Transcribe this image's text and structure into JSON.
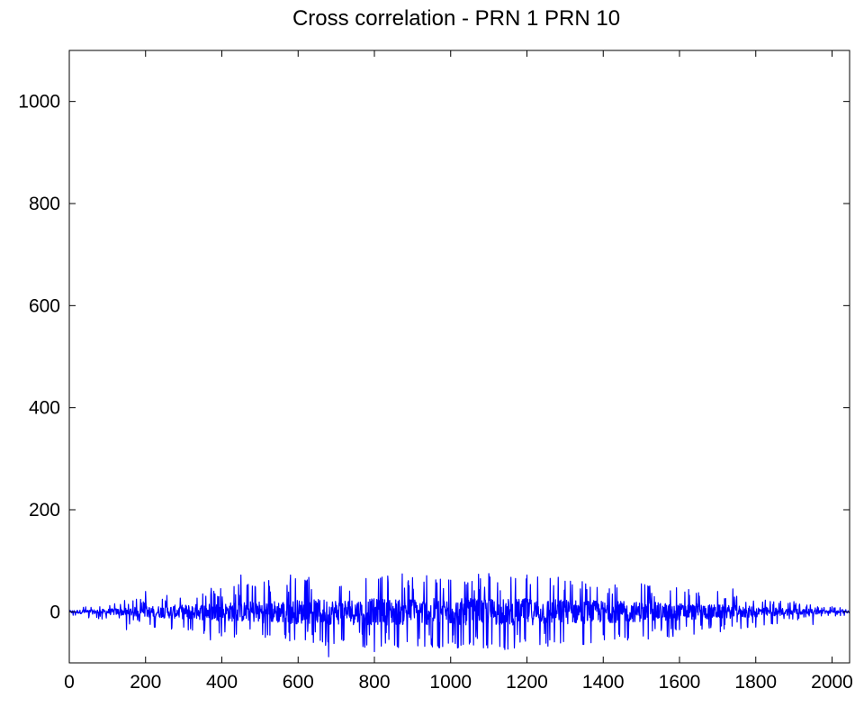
{
  "chart_data": {
    "type": "line",
    "title": "Cross correlation - PRN 1 PRN 10",
    "xlabel": "",
    "ylabel": "",
    "xlim": [
      0,
      2046
    ],
    "ylim": [
      -100,
      1100
    ],
    "xticks": [
      0,
      200,
      400,
      600,
      800,
      1000,
      1200,
      1400,
      1600,
      1800,
      2000
    ],
    "yticks": [
      0,
      200,
      400,
      600,
      800,
      1000
    ],
    "grid": false,
    "legend": "none",
    "series": [
      {
        "color": "#0000ff",
        "description_points": {
          "x": [
            0,
            80,
            150,
            200,
            300,
            370,
            450,
            520,
            580,
            640,
            680,
            720,
            780,
            800,
            820,
            860,
            900,
            950,
            1000,
            1060,
            1100,
            1140,
            1150,
            1200,
            1260,
            1300,
            1400,
            1500,
            1600,
            1700,
            1740,
            1800,
            1900,
            1950,
            2000,
            2046
          ],
          "y": [
            0,
            10,
            -35,
            40,
            -30,
            -55,
            72,
            -45,
            72,
            -60,
            -88,
            -55,
            -65,
            -78,
            68,
            -68,
            67,
            -65,
            62,
            -65,
            75,
            -70,
            -73,
            72,
            -55,
            60,
            -45,
            55,
            -35,
            40,
            45,
            -30,
            20,
            -25,
            10,
            0
          ]
        },
        "envelope": {
          "x": [
            0,
            100,
            200,
            300,
            400,
            500,
            600,
            700,
            800,
            900,
            1000,
            1100,
            1200,
            1300,
            1400,
            1500,
            1600,
            1700,
            1800,
            1900,
            2000,
            2046
          ],
          "amplitude": [
            8,
            16,
            30,
            40,
            52,
            62,
            68,
            72,
            74,
            75,
            75,
            75,
            74,
            70,
            62,
            56,
            48,
            40,
            30,
            18,
            10,
            6
          ]
        },
        "samples": 2047
      }
    ]
  }
}
